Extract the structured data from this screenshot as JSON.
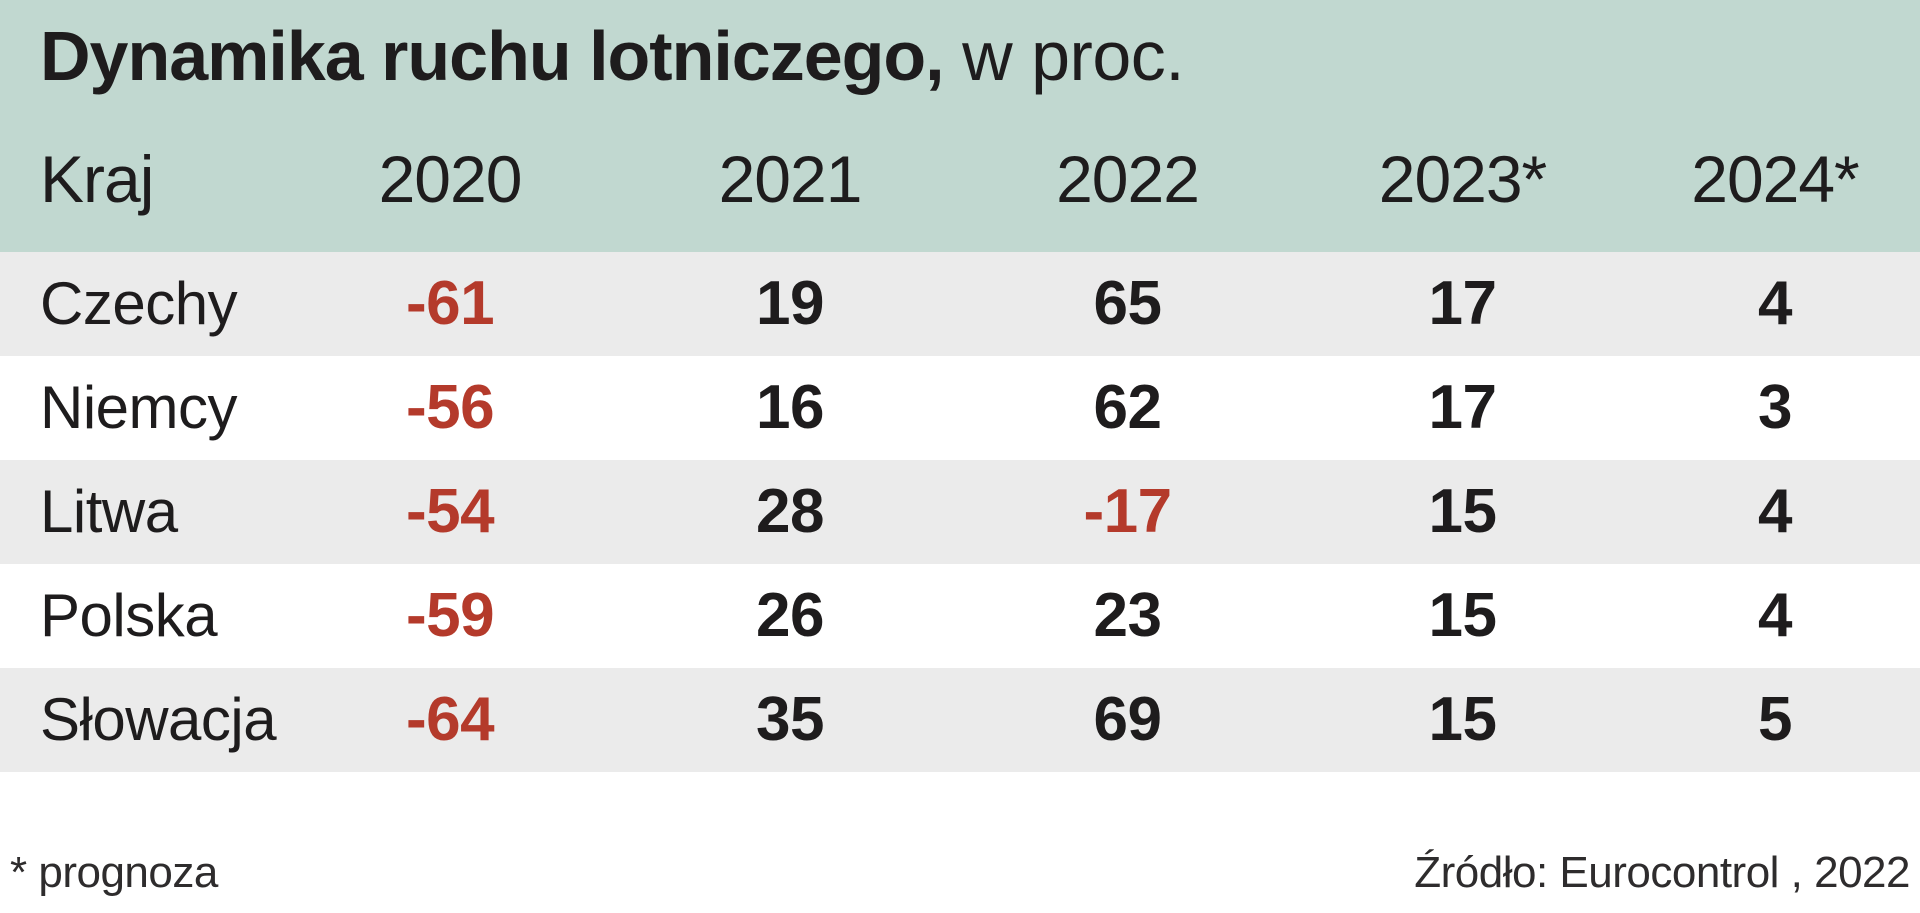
{
  "header": {
    "title_bold": "Dynamika ruchu lotniczego,",
    "title_regular": "w proc."
  },
  "table": {
    "columns": [
      "Kraj",
      "2020",
      "2021",
      "2022",
      "2023*",
      "2024*"
    ],
    "rows": [
      {
        "country": "Czechy",
        "values": [
          "-61",
          "19",
          "65",
          "17",
          "4"
        ]
      },
      {
        "country": "Niemcy",
        "values": [
          "-56",
          "16",
          "62",
          "17",
          "3"
        ]
      },
      {
        "country": "Litwa",
        "values": [
          "-54",
          "28",
          "-17",
          "15",
          "4"
        ]
      },
      {
        "country": "Polska",
        "values": [
          "-59",
          "26",
          "23",
          "15",
          "4"
        ]
      },
      {
        "country": "Słowacja",
        "values": [
          "-64",
          "35",
          "69",
          "15",
          "5"
        ]
      }
    ]
  },
  "footer": {
    "note": "* prognoza",
    "source": "Źródło: Eurocontrol , 2022"
  },
  "colors": {
    "header_bg": "#c1d8d0",
    "row_alt_bg": "#ebebeb",
    "row_bg": "#ffffff",
    "text": "#1e1c1d",
    "negative": "#b43a2b"
  },
  "chart_data": {
    "type": "table",
    "title": "Dynamika ruchu lotniczego, w proc.",
    "categories": [
      "2020",
      "2021",
      "2022",
      "2023*",
      "2024*"
    ],
    "series": [
      {
        "name": "Czechy",
        "values": [
          -61,
          19,
          65,
          17,
          4
        ]
      },
      {
        "name": "Niemcy",
        "values": [
          -56,
          16,
          62,
          17,
          3
        ]
      },
      {
        "name": "Litwa",
        "values": [
          -54,
          28,
          -17,
          15,
          4
        ]
      },
      {
        "name": "Polska",
        "values": [
          -59,
          26,
          23,
          15,
          4
        ]
      },
      {
        "name": "Słowacja",
        "values": [
          -64,
          35,
          69,
          15,
          5
        ]
      }
    ],
    "unit": "percent",
    "notes": "* prognoza (forecast years 2023, 2024)",
    "source": "Źródło: Eurocontrol , 2022",
    "layout": {
      "striped_rows": true,
      "negative_values_color": "#b43a2b",
      "header_background": "#c1d8d0",
      "value_alignment": "center",
      "country_column_alignment": "left"
    }
  }
}
